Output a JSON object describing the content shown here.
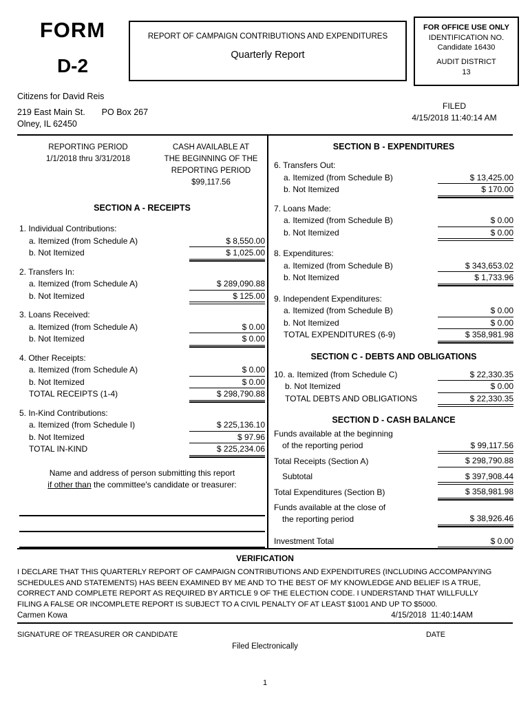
{
  "header": {
    "form_word": "FORM",
    "form_number": "D-2",
    "report_title": "REPORT OF CAMPAIGN CONTRIBUTIONS AND EXPENDITURES",
    "report_subtitle": "Quarterly Report",
    "office_box": {
      "title": "FOR OFFICE USE ONLY",
      "id_label": "IDENTIFICATION NO.",
      "id_value": "Candidate 16430",
      "audit_label": "AUDIT DISTRICT",
      "audit_value": "13"
    },
    "committee": {
      "name": "Citizens for David Reis",
      "street": "219 East Main St.",
      "po_box": "PO Box 267",
      "city": "Olney, IL 62450"
    },
    "filed_label": "FILED",
    "filed_datetime": "4/15/2018 11:40:14 AM"
  },
  "reporting": {
    "period_label": "REPORTING PERIOD",
    "period_value": "1/1/2018 thru 3/31/2018",
    "cash_line1": "CASH AVAILABLE AT",
    "cash_line2": "THE BEGINNING OF THE",
    "cash_line3": "REPORTING PERIOD",
    "cash_value": "$99,117.56"
  },
  "sectionA": {
    "title": "SECTION A - RECEIPTS",
    "rows": [
      {
        "label": "1. Individual Contributions:"
      },
      {
        "label": "a. Itemized (from Schedule A)",
        "value": "$ 8,550.00",
        "rule": "single"
      },
      {
        "label": "b. Not Itemized",
        "value": "$ 1,025.00",
        "rule": "double"
      },
      {
        "label": "2. Transfers In:"
      },
      {
        "label": "a. Itemized (from Schedule A)",
        "value": "$ 289,090.88",
        "rule": "single"
      },
      {
        "label": "b. Not Itemized",
        "value": "$ 125.00",
        "rule": "double"
      },
      {
        "label": "3. Loans Received:"
      },
      {
        "label": "a. Itemized (from Schedule A)",
        "value": "$ 0.00",
        "rule": "single"
      },
      {
        "label": "b. Not Itemized",
        "value": "$ 0.00",
        "rule": "double"
      },
      {
        "label": "4. Other Receipts:"
      },
      {
        "label": "a. Itemized (from Schedule A)",
        "value": "$ 0.00",
        "rule": "single"
      },
      {
        "label": "b. Not Itemized",
        "value": "$ 0.00",
        "rule": "single"
      },
      {
        "label": "TOTAL RECEIPTS (1-4)",
        "value": "$ 298,790.88",
        "rule": "double"
      },
      {
        "label": "5. In-Kind Contributions:"
      },
      {
        "label": "a. Itemized (from Schedule I)",
        "value": "$ 225,136.10",
        "rule": "single"
      },
      {
        "label": "b. Not Itemized",
        "value": "$ 97.96",
        "rule": "single"
      },
      {
        "label": "TOTAL IN-KIND",
        "value": "$ 225,234.06",
        "rule": "double"
      }
    ]
  },
  "sectionB": {
    "title": "SECTION B - EXPENDITURES",
    "rows": [
      {
        "label": "6. Transfers Out:"
      },
      {
        "label": "a. Itemized (from Schedule B)",
        "value": "$ 13,425.00",
        "rule": "single"
      },
      {
        "label": "b. Not Itemized",
        "value": "$ 170.00",
        "rule": "double"
      },
      {
        "label": "7. Loans Made:"
      },
      {
        "label": "a. Itemized (from Schedule B)",
        "value": "$ 0.00",
        "rule": "single"
      },
      {
        "label": "b. Not Itemized",
        "value": "$ 0.00",
        "rule": "double"
      },
      {
        "label": "8. Expenditures:"
      },
      {
        "label": "a. Itemized (from Schedule B)",
        "value": "$ 343,653.02",
        "rule": "single"
      },
      {
        "label": "b. Not Itemized",
        "value": "$ 1,733.96",
        "rule": "double"
      },
      {
        "label": "9. Independent Expenditures:"
      },
      {
        "label": "a. Itemized (from Schedule B)",
        "value": "$ 0.00",
        "rule": "single"
      },
      {
        "label": "b. Not Itemized",
        "value": "$ 0.00",
        "rule": "single"
      },
      {
        "label": "TOTAL EXPENDITURES (6-9)",
        "value": "$ 358,981.98",
        "rule": "double"
      }
    ]
  },
  "sectionC": {
    "title": "SECTION C - DEBTS AND OBLIGATIONS",
    "rows": [
      {
        "label": "10. a. Itemized (from Schedule C)",
        "value": "$ 22,330.35",
        "rule": "single"
      },
      {
        "label": "b. Not Itemized",
        "value": "$ 0.00",
        "rule": "single"
      },
      {
        "label": "TOTAL DEBTS AND OBLIGATIONS",
        "value": "$ 22,330.35",
        "rule": "double"
      }
    ]
  },
  "sectionD": {
    "title": "SECTION D - CASH BALANCE",
    "rows": [
      {
        "label": "Funds available at the beginning",
        "label2": "of the reporting period",
        "value": "$ 99,117.56",
        "rule": "double"
      },
      {
        "label": "Total Receipts (Section A)",
        "value": "$ 298,790.88",
        "rule": "single"
      },
      {
        "label": "Subtotal",
        "value": "$ 397,908.44",
        "rule": "double"
      },
      {
        "label": "Total Expenditures (Section B)",
        "value": "$ 358,981.98",
        "rule": "double"
      },
      {
        "label": "Funds available at the close of",
        "label2": "the reporting period",
        "value": "$ 38,926.46",
        "rule": "double"
      },
      {
        "label": "Investment Total",
        "value": "$ 0.00",
        "rule": "single"
      }
    ]
  },
  "submitter_note": {
    "line1": "Name and address of person submitting this report",
    "line2_underlined": "if other than",
    "line2_rest": " the committee's candidate or treasurer:"
  },
  "verification": {
    "title": "VERIFICATION",
    "lines": [
      "I DECLARE THAT THIS QUARTERLY REPORT OF CAMPAIGN CONTRIBUTIONS AND EXPENDITURES (INCLUDING ACCOMPANYING",
      "SCHEDULES AND STATEMENTS) HAS BEEN EXAMINED BY ME AND TO THE BEST OF MY KNOWLEDGE AND BELIEF IS A TRUE,",
      "CORRECT AND COMPLETE REPORT AS REQUIRED BY ARTICLE 9 OF THE ELECTION CODE. I UNDERSTAND THAT WILLFULLY",
      "FILING A FALSE OR INCOMPLETE REPORT IS SUBJECT TO A CIVIL PENALTY OF AT LEAST $1001 AND UP TO $5000."
    ],
    "signer_name": "Carmen Kowa",
    "signed_datetime": "4/15/2018  11:40:14AM",
    "signature_caption": "SIGNATURE OF TREASURER OR CANDIDATE",
    "date_caption": "DATE",
    "filed_note": "Filed Electronically"
  },
  "footer": {
    "page_number": "1"
  }
}
